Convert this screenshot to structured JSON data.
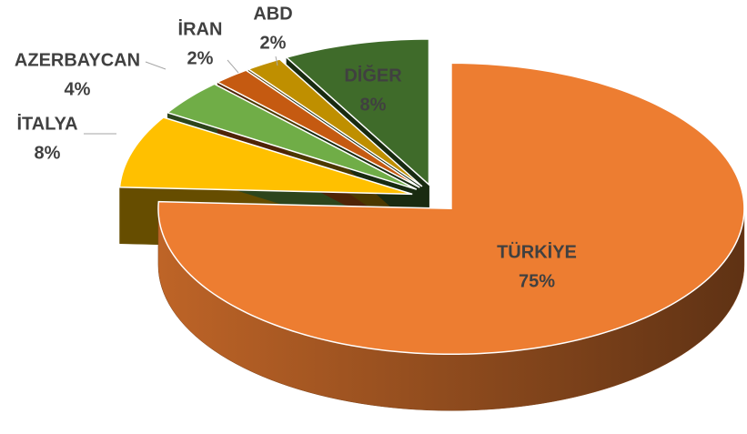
{
  "chart_data": {
    "type": "pie3d",
    "categories": [
      "TÜRKİYE",
      "İTALYA",
      "AZERBAYCAN",
      "İRAN",
      "ABD",
      "DİĞER"
    ],
    "values": [
      75,
      8,
      4,
      2,
      2,
      8
    ],
    "value_labels": [
      "75%",
      "8%",
      "4%",
      "2%",
      "2%",
      "8%"
    ],
    "colors": [
      "#ed7d31",
      "#ffc000",
      "#70ad47",
      "#c55a11",
      "#bf8f00",
      "#3f6b2a"
    ]
  }
}
